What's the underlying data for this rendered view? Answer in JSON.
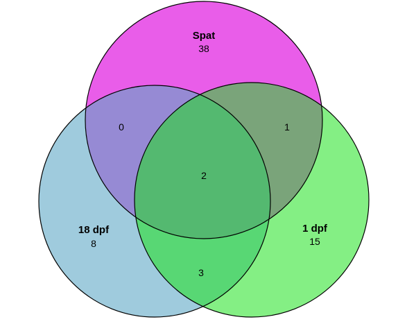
{
  "sets": [
    {
      "name": "Spat",
      "color": "#de10de",
      "only_count": "38"
    },
    {
      "name": "18 dpf",
      "color": "#5fa9c6",
      "only_count": "8"
    },
    {
      "name": "1 dpf",
      "color": "#1be21b",
      "only_count": "15"
    }
  ],
  "intersections": {
    "spat_18dpf": "0",
    "spat_1dpf": "1",
    "all_three": "2",
    "18dpf_1dpf": "3"
  }
}
